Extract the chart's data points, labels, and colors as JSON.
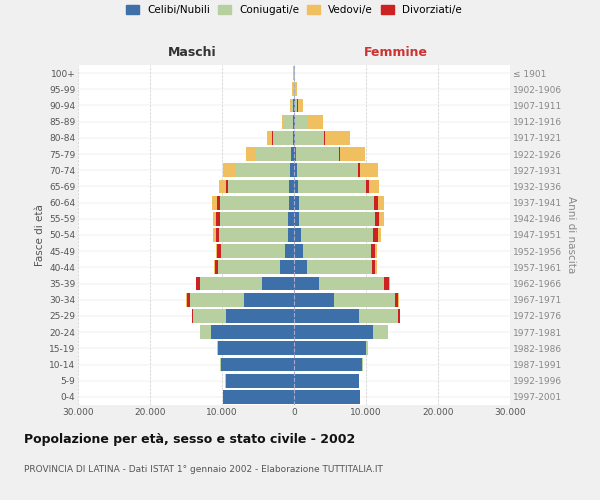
{
  "age_groups": [
    "0-4",
    "5-9",
    "10-14",
    "15-19",
    "20-24",
    "25-29",
    "30-34",
    "35-39",
    "40-44",
    "45-49",
    "50-54",
    "55-59",
    "60-64",
    "65-69",
    "70-74",
    "75-79",
    "80-84",
    "85-89",
    "90-94",
    "95-99",
    "100+"
  ],
  "birth_years": [
    "1997-2001",
    "1992-1996",
    "1987-1991",
    "1982-1986",
    "1977-1981",
    "1972-1976",
    "1967-1971",
    "1962-1966",
    "1957-1961",
    "1952-1956",
    "1947-1951",
    "1942-1946",
    "1937-1941",
    "1932-1936",
    "1927-1931",
    "1922-1926",
    "1917-1921",
    "1912-1916",
    "1907-1911",
    "1902-1906",
    "≤ 1901"
  ],
  "males": {
    "celibe": [
      9800,
      9500,
      10200,
      10500,
      11500,
      9500,
      7000,
      4500,
      2000,
      1200,
      900,
      800,
      750,
      650,
      500,
      350,
      180,
      120,
      80,
      60,
      40
    ],
    "coniugato": [
      5,
      10,
      50,
      200,
      1500,
      4500,
      7500,
      8500,
      8500,
      9000,
      9500,
      9500,
      9500,
      8500,
      7500,
      5000,
      2800,
      1200,
      350,
      120,
      60
    ],
    "vedovo": [
      1,
      2,
      5,
      10,
      20,
      30,
      60,
      80,
      100,
      150,
      300,
      500,
      700,
      1000,
      1800,
      1200,
      700,
      300,
      100,
      30,
      10
    ],
    "divorziato": [
      1,
      2,
      5,
      20,
      50,
      200,
      400,
      550,
      450,
      450,
      500,
      500,
      500,
      300,
      120,
      80,
      50,
      30,
      20,
      10,
      5
    ]
  },
  "females": {
    "nubile": [
      9200,
      9000,
      9500,
      10000,
      11000,
      9000,
      5500,
      3500,
      1800,
      1200,
      1000,
      750,
      650,
      550,
      450,
      300,
      200,
      150,
      80,
      50,
      30
    ],
    "coniugata": [
      5,
      15,
      80,
      300,
      2000,
      5500,
      8500,
      9000,
      9000,
      9500,
      10000,
      10500,
      10500,
      9500,
      8500,
      6000,
      4000,
      1800,
      400,
      120,
      60
    ],
    "vedova": [
      1,
      3,
      5,
      15,
      30,
      60,
      100,
      150,
      200,
      300,
      500,
      700,
      900,
      1500,
      2500,
      3500,
      3500,
      2000,
      700,
      200,
      60
    ],
    "divorziata": [
      1,
      2,
      5,
      20,
      60,
      200,
      450,
      650,
      500,
      500,
      600,
      500,
      500,
      300,
      200,
      100,
      60,
      30,
      20,
      10,
      5
    ]
  },
  "colors": {
    "celibe": "#3d6fa8",
    "coniugato": "#b8cfa0",
    "vedovo": "#f0c060",
    "divorziato": "#cc2222"
  },
  "xlim": 30000,
  "title": "Popolazione per età, sesso e stato civile - 2002",
  "subtitle": "PROVINCIA DI LATINA - Dati ISTAT 1° gennaio 2002 - Elaborazione TUTTITALIA.IT",
  "ylabel_left": "Fasce di età",
  "ylabel_right": "Anni di nascita",
  "label_maschi": "Maschi",
  "label_femmine": "Femmine",
  "bg_color": "#f0f0f0",
  "plot_bg": "#ffffff",
  "legend_labels": [
    "Celibi/Nubili",
    "Coniugati/e",
    "Vedovi/e",
    "Divorziati/e"
  ],
  "tick_labels": [
    "30.000",
    "20.000",
    "10.000",
    "0",
    "10.000",
    "20.000",
    "30.000"
  ],
  "tick_vals": [
    -30000,
    -20000,
    -10000,
    0,
    10000,
    20000,
    30000
  ]
}
